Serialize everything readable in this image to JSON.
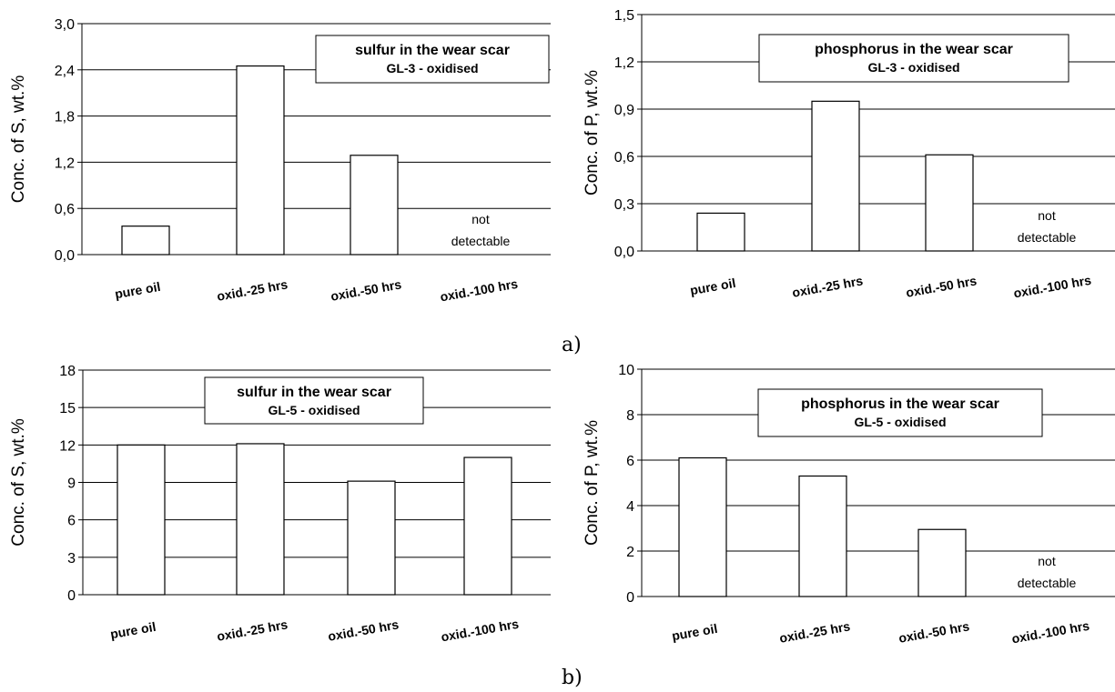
{
  "panel_labels": [
    "a)",
    "b)"
  ],
  "chart_data": [
    {
      "type": "bar",
      "ylabel": "Conc. of S, wt.%",
      "title": "sulfur in the wear scar",
      "subtitle": "GL-3 - oxidised",
      "categories": [
        "pure oil",
        "oxid.-25 hrs",
        "oxid.-50 hrs",
        "oxid.-100 hrs"
      ],
      "values": [
        0.37,
        2.45,
        1.29,
        null
      ],
      "ylim": [
        0,
        3.0
      ],
      "yticks": [
        "0,0",
        "0,6",
        "1,2",
        "1,8",
        "2,4",
        "3,0"
      ],
      "grid": true,
      "annotation": [
        "not",
        "detectable"
      ]
    },
    {
      "type": "bar",
      "ylabel": "Conc. of P, wt.%",
      "title": "phosphorus in the wear scar",
      "subtitle": "GL-3 - oxidised",
      "categories": [
        "pure oil",
        "oxid.-25 hrs",
        "oxid.-50 hrs",
        "oxid.-100 hrs"
      ],
      "values": [
        0.24,
        0.95,
        0.61,
        null
      ],
      "ylim": [
        0,
        1.5
      ],
      "yticks": [
        "0,0",
        "0,3",
        "0,6",
        "0,9",
        "1,2",
        "1,5"
      ],
      "grid": true,
      "annotation": [
        "not",
        "detectable"
      ]
    },
    {
      "type": "bar",
      "ylabel": "Conc. of S, wt.%",
      "title": "sulfur in the wear scar",
      "subtitle": "GL-5 - oxidised",
      "categories": [
        "pure oil",
        "oxid.-25 hrs",
        "oxid.-50 hrs",
        "oxid.-100 hrs"
      ],
      "values": [
        12.0,
        12.1,
        9.1,
        11.0
      ],
      "ylim": [
        0,
        18
      ],
      "yticks": [
        "0",
        "3",
        "6",
        "9",
        "12",
        "15",
        "18"
      ],
      "grid": true,
      "annotation": null
    },
    {
      "type": "bar",
      "ylabel": "Conc. of P, wt.%",
      "title": "phosphorus in the wear scar",
      "subtitle": "GL-5 - oxidised",
      "categories": [
        "pure oil",
        "oxid.-25 hrs",
        "oxid.-50 hrs",
        "oxid.-100 hrs"
      ],
      "values": [
        6.1,
        5.3,
        2.95,
        null
      ],
      "ylim": [
        0,
        10
      ],
      "yticks": [
        "0",
        "2",
        "4",
        "6",
        "8",
        "10"
      ],
      "grid": true,
      "annotation": [
        "not",
        "detectable"
      ]
    }
  ]
}
